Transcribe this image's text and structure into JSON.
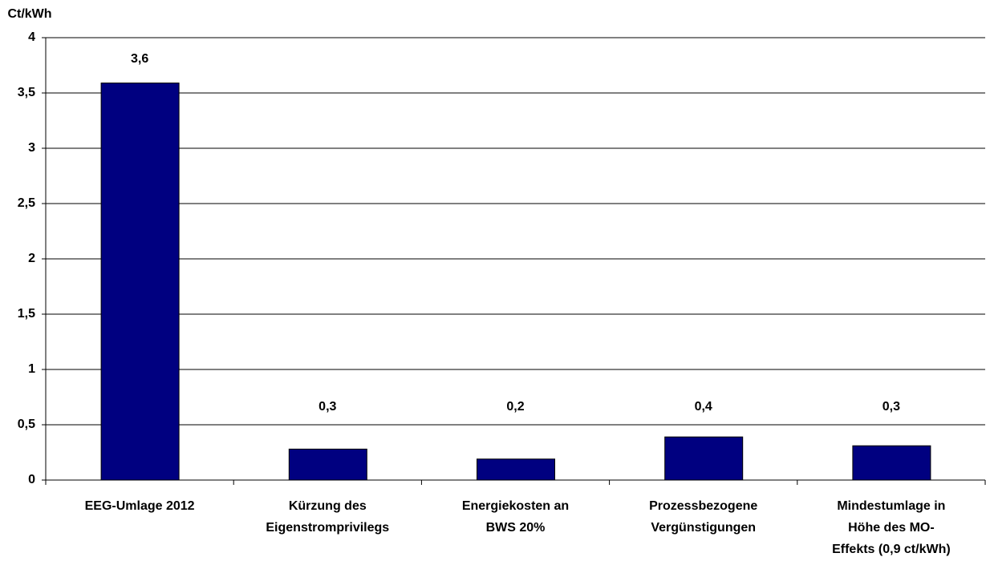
{
  "chart_data": {
    "type": "bar",
    "y_label": "Ct/kWh",
    "categories": [
      "EEG-Umlage 2012",
      "Kürzung des\nEigenstromprivilegs",
      "Energiekosten an\nBWS 20%",
      "Prozessbezogene\nVergünstigungen",
      "Mindestumlage in\nHöhe des MO-\nEffekts (0,9 ct/kWh)"
    ],
    "values": [
      3.59,
      0.28,
      0.19,
      0.39,
      0.31
    ],
    "value_labels": [
      "3,6",
      "0,3",
      "0,2",
      "0,4",
      "0,3"
    ],
    "color": "#000080",
    "ylim": [
      0,
      4
    ],
    "yticks": [
      0,
      {
        "value": 0.5,
        "label": "0,5"
      },
      1,
      {
        "value": 1.5,
        "label": "1,5"
      },
      2,
      {
        "value": 2.5,
        "label": "2,5"
      },
      3,
      {
        "value": 3.5,
        "label": "3,5"
      },
      4
    ],
    "grid": true
  }
}
